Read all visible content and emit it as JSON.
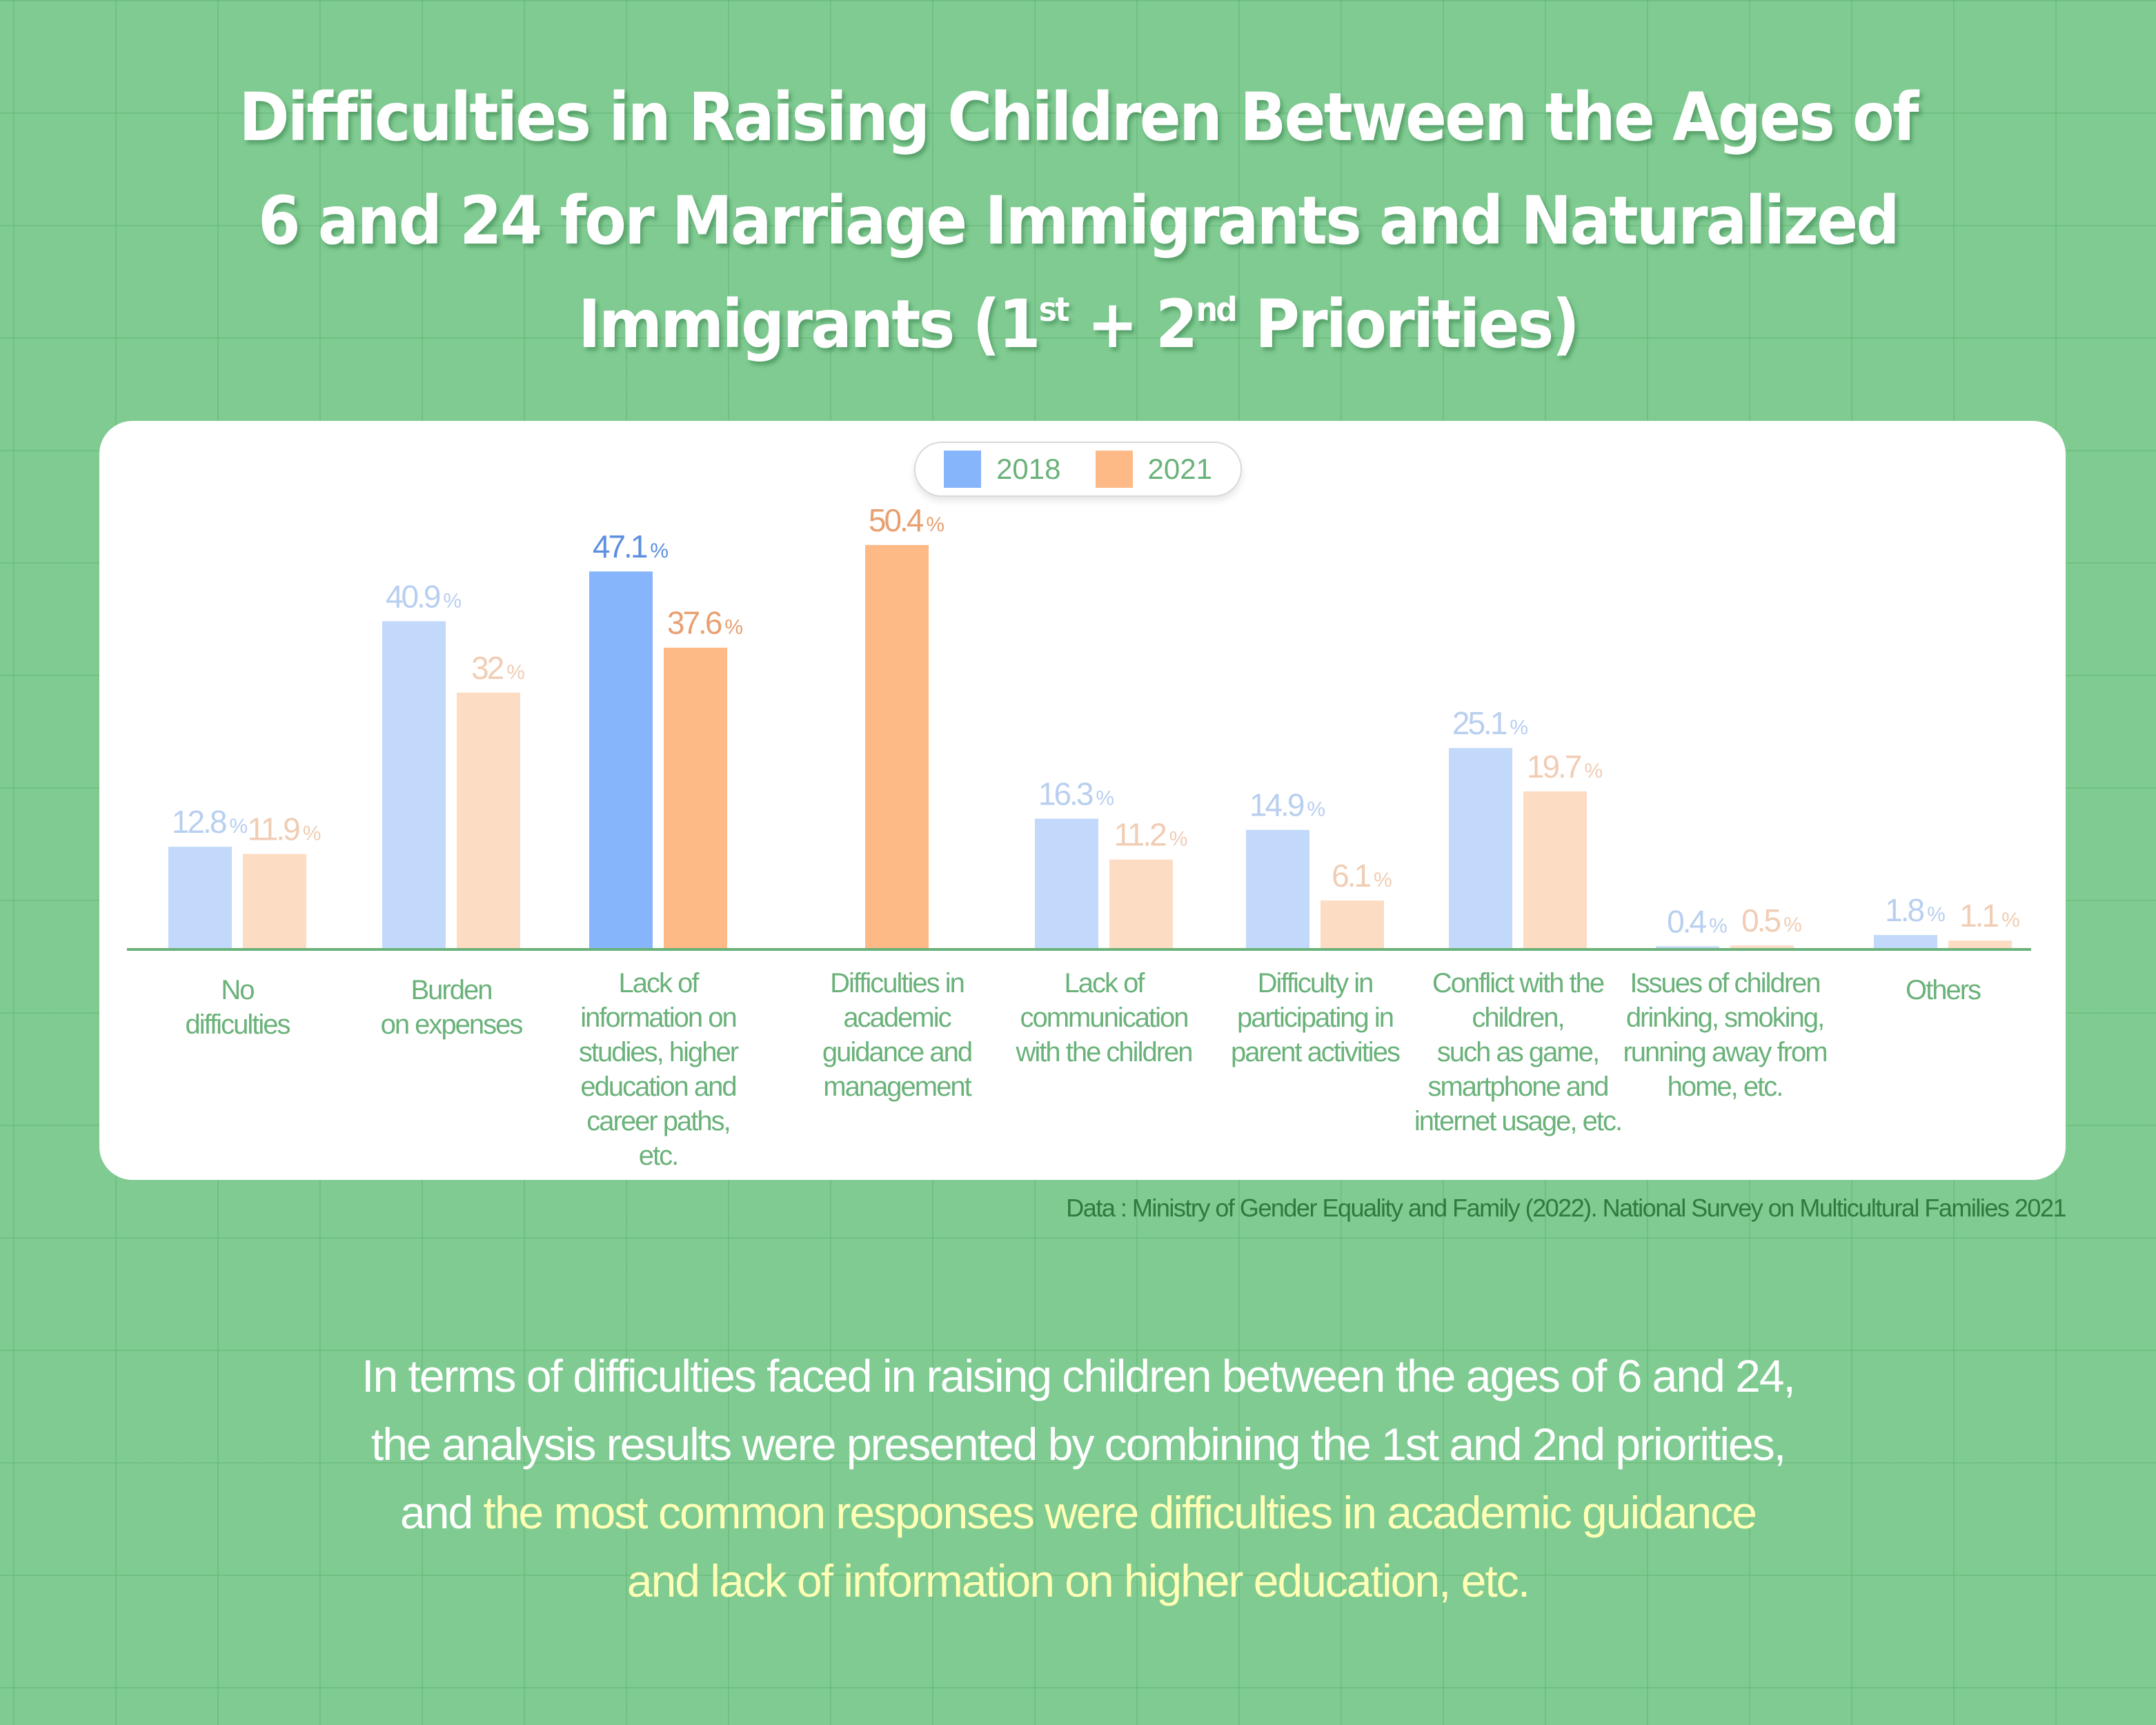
{
  "title": {
    "line1": "Difficulties in Raising Children Between the Ages of",
    "line2": "6 and 24 for Marriage Immigrants and Naturalized",
    "line3_pre": "Immigrants (1",
    "sup1": "st",
    "line3_mid": " + 2",
    "sup2": "nd",
    "line3_post": " Priorities)"
  },
  "legend": [
    {
      "label": "2018",
      "color": "#86b5fb"
    },
    {
      "label": "2021",
      "color": "#fdb986"
    }
  ],
  "colors": {
    "bar_2018": "#c2d9fc",
    "bar_2018_highlight": "#86b5fb",
    "bar_2021": "#fddcc4",
    "bar_2021_highlight": "#fdb986",
    "label_2018": "#b8cff0",
    "label_2018_highlight": "#5d8fe0",
    "label_2021": "#f0cdb4",
    "label_2021_highlight": "#e8a071",
    "baseline": "#6ab27a"
  },
  "chart_data": {
    "type": "bar",
    "title": "Difficulties in Raising Children Between the Ages of 6 and 24 for Marriage Immigrants and Naturalized Immigrants (1st + 2nd Priorities)",
    "xlabel": "",
    "ylabel": "",
    "unit": "%",
    "ylim": [
      0,
      55
    ],
    "grid": false,
    "legend_position": "top-center",
    "categories": [
      "No difficulties",
      "Burden on expenses",
      "Lack of information on studies, higher education and career paths, etc.",
      "Difficulties in academic guidance and management",
      "Lack of communication with the children",
      "Difficulty in participating in parent activities",
      "Conflict with the children, such as game, smartphone and internet usage, etc.",
      "Issues of children drinking, smoking, running away from home, etc.",
      "Others"
    ],
    "category_lines": [
      [
        "No",
        "difficulties"
      ],
      [
        "Burden",
        "on expenses"
      ],
      [
        "Lack of",
        "information on",
        "studies, higher",
        "education and",
        "career paths,",
        "etc."
      ],
      [
        "Difficulties in",
        "academic",
        "guidance and",
        "management"
      ],
      [
        "Lack of",
        "communication",
        "with the children"
      ],
      [
        "Difficulty in",
        "participating in",
        "parent activities"
      ],
      [
        "Conflict with the",
        "children,",
        "such as game,",
        "smartphone and",
        "internet usage, etc."
      ],
      [
        "Issues of children",
        "drinking, smoking,",
        "running away from",
        "home, etc."
      ],
      [
        "Others"
      ]
    ],
    "series": [
      {
        "name": "2018",
        "values": [
          12.8,
          40.9,
          47.1,
          null,
          16.3,
          14.9,
          25.1,
          0.4,
          1.8
        ],
        "labels": [
          "12.8",
          "40.9",
          "47.1",
          null,
          "16.3",
          "14.9",
          "25.1",
          "0.4",
          "1.8"
        ],
        "highlight_index": 2
      },
      {
        "name": "2021",
        "values": [
          11.9,
          32.0,
          37.6,
          50.4,
          11.2,
          6.1,
          19.7,
          0.5,
          1.1
        ],
        "labels": [
          "11.9",
          "32",
          "37.6",
          "50.4",
          "11.2",
          "6.1",
          "19.7",
          "0.5",
          "1.1"
        ],
        "highlight_index": [
          2,
          3
        ]
      }
    ]
  },
  "source": "Data : Ministry of Gender Equality and Family (2022). National Survey on Multicultural Families 2021",
  "summary": {
    "line1": "In terms of difficulties faced in raising children between the ages of 6 and 24,",
    "line2": "the analysis results were presented by combining the 1st and 2nd priorities,",
    "line3_plain": "and ",
    "line3_highlight": "the most common responses were difficulties in academic guidance",
    "line4_highlight": "and lack of information on higher education, etc."
  }
}
